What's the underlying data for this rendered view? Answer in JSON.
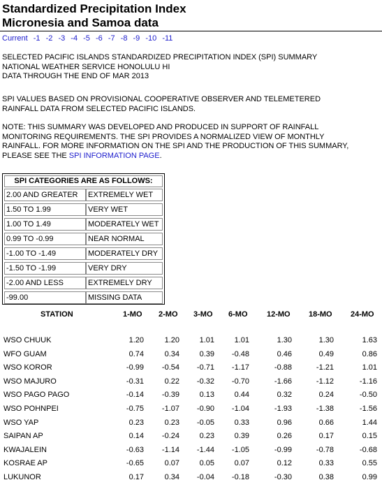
{
  "page": {
    "title_line1": "Standardized Precipitation Index",
    "title_line2": "Micronesia and Samoa data"
  },
  "nav": {
    "items": [
      "Current",
      "-1",
      "-2",
      "-3",
      "-4",
      "-5",
      "-6",
      "-7",
      "-8",
      "-9",
      "-10",
      "-11"
    ]
  },
  "intro": {
    "line1": "SELECTED PACIFIC ISLANDS STANDARDIZED PRECIPITATION INDEX (SPI) SUMMARY",
    "line2": "NATIONAL WEATHER SERVICE HONOLULU HI",
    "line3": "DATA THROUGH THE END OF MAR 2013",
    "basis_line1": "SPI VALUES BASED ON PROVISIONAL COOPERATIVE OBSERVER AND TELEMETERED",
    "basis_line2": "RAINFALL DATA FROM SELECTED PACIFIC ISLANDS.",
    "note_line1": "NOTE: THIS SUMMARY WAS DEVELOPED AND PRODUCED IN SUPPORT OF RAINFALL",
    "note_line2": "MONITORING REQUIREMENTS. THE SPI PROVIDES A NORMALIZED VIEW OF MONTHLY",
    "note_line3": "RAINFALL. FOR MORE INFORMATION ON THE SPI AND THE PRODUCTION OF THIS SUMMARY,",
    "note_line4_prefix": "PLEASE SEE THE ",
    "note_link": "SPI INFORMATION PAGE",
    "note_line4_suffix": "."
  },
  "categories": {
    "header": "SPI CATEGORIES ARE AS FOLLOWS:",
    "rows": [
      {
        "range": "2.00 AND GREATER",
        "label": "EXTREMELY WET"
      },
      {
        "range": "1.50 TO 1.99",
        "label": "VERY WET"
      },
      {
        "range": "1.00 TO 1.49",
        "label": "MODERATELY WET"
      },
      {
        "range": "0.99 TO -0.99",
        "label": "NEAR NORMAL"
      },
      {
        "range": "-1.00 TO -1.49",
        "label": "MODERATELY DRY"
      },
      {
        "range": "-1.50 TO -1.99",
        "label": "VERY DRY"
      },
      {
        "range": "-2.00 AND LESS",
        "label": "EXTREMELY DRY"
      },
      {
        "range": "-99.00",
        "label": "MISSING DATA"
      }
    ]
  },
  "table": {
    "headers": [
      "STATION",
      "1-MO",
      "2-MO",
      "3-MO",
      "6-MO",
      "12-MO",
      "18-MO",
      "24-MO"
    ],
    "rows": [
      {
        "station": "WSO CHUUK",
        "v": [
          "1.20",
          "1.20",
          "1.01",
          "1.01",
          "1.30",
          "1.30",
          "1.63"
        ]
      },
      {
        "station": "WFO GUAM",
        "v": [
          "0.74",
          "0.34",
          "0.39",
          "-0.48",
          "0.46",
          "0.49",
          "0.86"
        ]
      },
      {
        "station": "WSO KOROR",
        "v": [
          "-0.99",
          "-0.54",
          "-0.71",
          "-1.17",
          "-0.88",
          "-1.21",
          "1.01"
        ]
      },
      {
        "station": "WSO MAJURO",
        "v": [
          "-0.31",
          "0.22",
          "-0.32",
          "-0.70",
          "-1.66",
          "-1.12",
          "-1.16"
        ]
      },
      {
        "station": "WSO PAGO PAGO",
        "v": [
          "-0.14",
          "-0.39",
          "0.13",
          "0.44",
          "0.32",
          "0.24",
          "-0.50"
        ]
      },
      {
        "station": "WSO POHNPEI",
        "v": [
          "-0.75",
          "-1.07",
          "-0.90",
          "-1.04",
          "-1.93",
          "-1.38",
          "-1.56"
        ]
      },
      {
        "station": "WSO YAP",
        "v": [
          "0.23",
          "0.23",
          "-0.05",
          "0.33",
          "0.96",
          "0.66",
          "1.44"
        ]
      },
      {
        "station": "SAIPAN AP",
        "v": [
          "0.14",
          "-0.24",
          "0.23",
          "0.39",
          "0.26",
          "0.17",
          "0.15"
        ]
      },
      {
        "station": "KWAJALEIN",
        "v": [
          "-0.63",
          "-1.14",
          "-1.44",
          "-1.05",
          "-0.99",
          "-0.78",
          "-0.68"
        ]
      },
      {
        "station": "KOSRAE AP",
        "v": [
          "-0.65",
          "0.07",
          "0.05",
          "0.07",
          "0.12",
          "0.33",
          "0.55"
        ]
      },
      {
        "station": "LUKUNOR",
        "v": [
          "0.17",
          "0.34",
          "-0.04",
          "-0.18",
          "-0.30",
          "0.38",
          "0.99"
        ]
      }
    ]
  },
  "colors": {
    "link": "#1a1acc"
  }
}
